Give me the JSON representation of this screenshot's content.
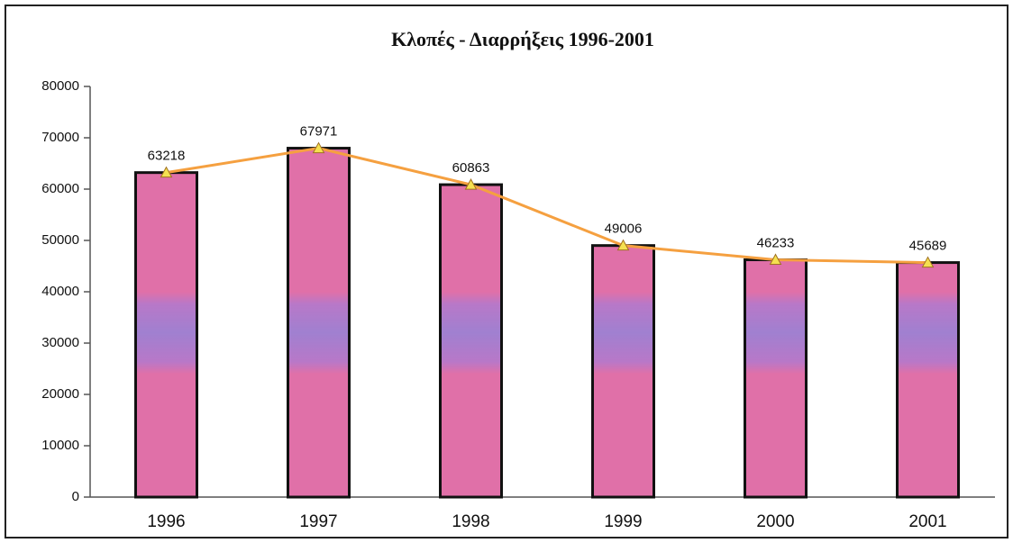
{
  "chart_data": {
    "type": "bar",
    "title": "Κλοπές - Διαρρήξεις 1996-2001",
    "categories": [
      "1996",
      "1997",
      "1998",
      "1999",
      "2000",
      "2001"
    ],
    "values": [
      63218,
      67971,
      60863,
      49006,
      46233,
      45689
    ],
    "color": "#e070a8",
    "line_overlay": true,
    "line_color": "#f5a040",
    "marker_color": "#f5e050",
    "data_labels": true,
    "ylim": [
      0,
      80000
    ],
    "yticks": [
      0,
      10000,
      20000,
      30000,
      40000,
      50000,
      60000,
      70000,
      80000
    ],
    "grid": false
  }
}
